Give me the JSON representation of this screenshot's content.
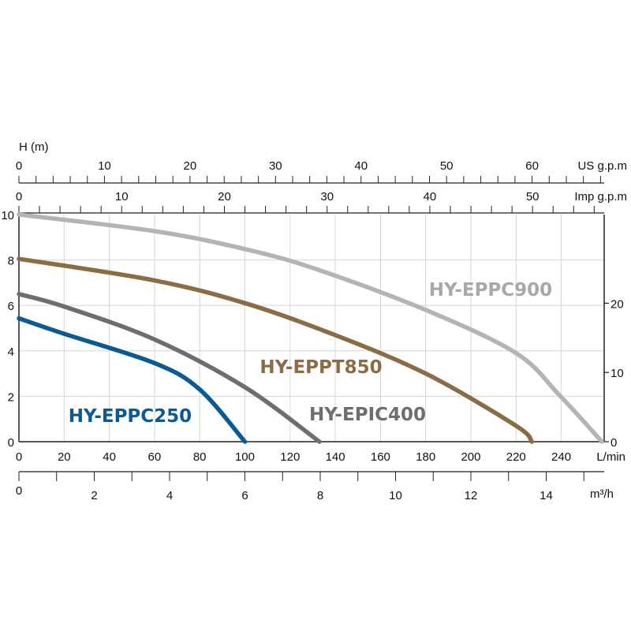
{
  "chart_data": {
    "type": "line",
    "title": "",
    "ylabel": "H (m)",
    "xlabel": "L/min",
    "xlim": [
      0,
      259
    ],
    "ylim": [
      0,
      10
    ],
    "grid": true,
    "y_ticks": [
      0,
      2,
      4,
      6,
      8,
      10
    ],
    "x_ticks": [
      0,
      20,
      40,
      60,
      80,
      100,
      120,
      140,
      160,
      180,
      200,
      220,
      240
    ],
    "right_axis": {
      "ticks": [
        0,
        10,
        20
      ],
      "unit_factor_per_m": 3.2808
    },
    "secondary_axes": [
      {
        "unit": "US g.p.m",
        "ticks": [
          0,
          10,
          20,
          30,
          40,
          50,
          60
        ],
        "minor_step": 2,
        "lmin_per_unit": 3.785
      },
      {
        "unit": "Imp g.p.m",
        "ticks": [
          0,
          10,
          20,
          30,
          40,
          50
        ],
        "minor_step": 2,
        "lmin_per_unit": 4.546
      },
      {
        "unit": "m³/h",
        "ticks": [
          0,
          2,
          4,
          6,
          8,
          10,
          12,
          14
        ],
        "minor_step": 1,
        "lmin_per_unit": 16.667
      }
    ],
    "series": [
      {
        "name": "HY-EPPC900",
        "color": "#b4b4b4",
        "label_color": "#a8a8a8",
        "x": [
          0,
          60,
          100,
          131.5,
          180,
          220,
          239,
          258
        ],
        "y": [
          10,
          9.27,
          8.48,
          7.6,
          5.8,
          3.9,
          2.07,
          0
        ]
      },
      {
        "name": "HY-EPPT850",
        "color": "#8b6d45",
        "label_color": "#8b6d45",
        "x": [
          0,
          60,
          100,
          138.5,
          180,
          220,
          227
        ],
        "y": [
          8.05,
          7.1,
          6.1,
          4.75,
          3.0,
          0.7,
          0
        ]
      },
      {
        "name": "HY-EPIC400",
        "color": "#6e6e6e",
        "label_color": "#6e6e6e",
        "x": [
          0,
          20,
          60,
          100,
          133
        ],
        "y": [
          6.5,
          5.95,
          4.5,
          2.4,
          0
        ]
      },
      {
        "name": "HY-EPPC250",
        "color": "#0a5b94",
        "label_color": "#0a5b94",
        "x": [
          0,
          20,
          60,
          80,
          100
        ],
        "y": [
          5.43,
          4.75,
          3.46,
          2.3,
          0
        ]
      }
    ]
  }
}
